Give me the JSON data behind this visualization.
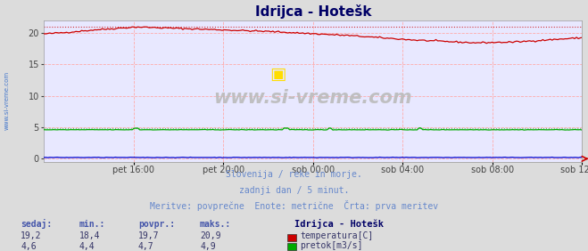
{
  "title": "Idrijca - Hotešk",
  "background_color": "#dcdcdc",
  "plot_bg_color": "#e8e8ff",
  "x_tick_labels": [
    "pet 16:00",
    "pet 20:00",
    "sob 00:00",
    "sob 04:00",
    "sob 08:00",
    "sob 12:00"
  ],
  "x_tick_positions": [
    0.1667,
    0.3333,
    0.5,
    0.6667,
    0.8333,
    1.0
  ],
  "y_ticks": [
    0,
    5,
    10,
    15,
    20
  ],
  "y_lim": [
    -0.5,
    22
  ],
  "x_lim": [
    0,
    1
  ],
  "temp_color": "#cc0000",
  "flow_color": "#00aa00",
  "height_color": "#0000cc",
  "grid_color": "#ffaaaa",
  "watermark_text": "www.si-vreme.com",
  "info_line1": "Slovenija / reke in morje.",
  "info_line2": "zadnji dan / 5 minut.",
  "info_line3": "Meritve: povprečne  Enote: metrične  Črta: prva meritev",
  "info_color": "#6688cc",
  "label_color": "#4455aa",
  "table_headers": [
    "sedaj:",
    "min.:",
    "povpr.:",
    "maks.:"
  ],
  "temp_row": [
    "19,2",
    "18,4",
    "19,7",
    "20,9"
  ],
  "flow_row": [
    "4,6",
    "4,4",
    "4,7",
    "4,9"
  ],
  "legend_title": "Idrijca - Hotešk",
  "legend_temp": "temperatura[C]",
  "legend_flow": "pretok[m3/s]",
  "temp_max": 20.9,
  "flow_max": 4.9,
  "num_points": 288
}
